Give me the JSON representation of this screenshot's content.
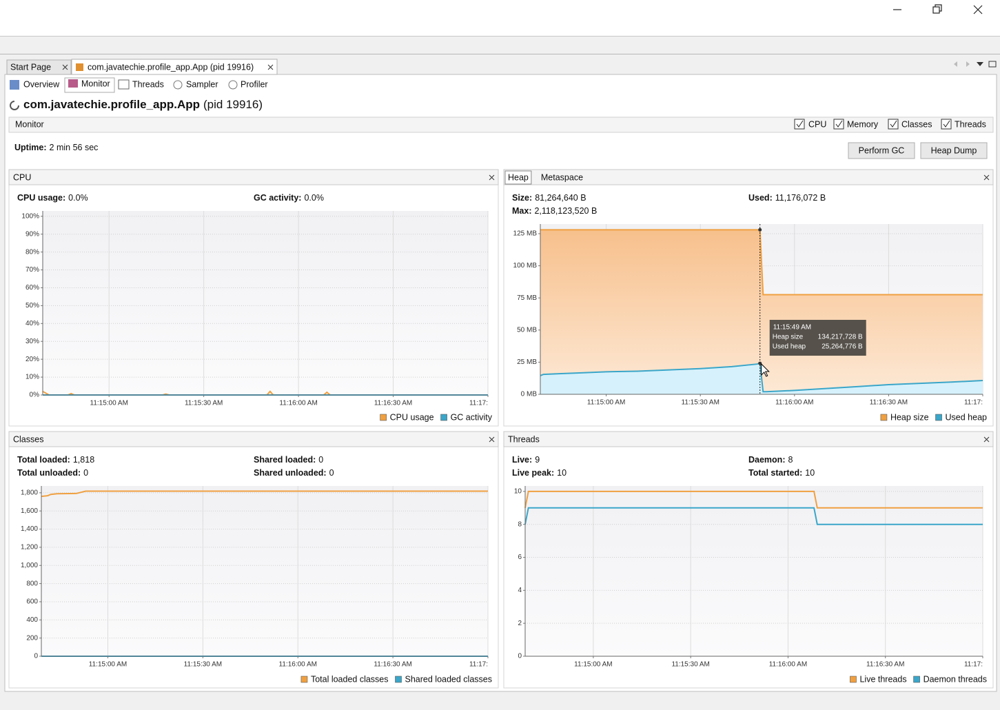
{
  "tabs": [
    "Start Page",
    "com.javatechie.profile_app.App (pid 19916)"
  ],
  "subtabs": [
    "Overview",
    "Monitor",
    "Threads",
    "Sampler",
    "Profiler"
  ],
  "app_title": {
    "name": "com.javatechie.profile_app.App",
    "pid": "(pid 19916)"
  },
  "monitor": {
    "title": "Monitor",
    "checkboxes": [
      "CPU",
      "Memory",
      "Classes",
      "Threads"
    ],
    "uptime_label": "Uptime:",
    "uptime": "2 min 56 sec",
    "buttons": [
      "Perform GC",
      "Heap Dump"
    ]
  },
  "panels": [
    {
      "tabs": [
        "CPU"
      ],
      "stats": [
        {
          "label": "CPU usage:",
          "value": "0.0%"
        },
        {
          "label": "GC activity:",
          "value": "0.0%"
        }
      ],
      "chart": {
        "type": "line",
        "x": [
          40479,
          40480,
          40481,
          40487,
          40488,
          40489,
          40517,
          40518,
          40519,
          40550,
          40551,
          40552,
          40568,
          40569,
          40570,
          40620
        ],
        "series": [
          {
            "name": "CPU usage",
            "color": "#f0a040",
            "values": [
              2,
              1,
              0,
              0,
              0.8,
              0,
              0,
              0.5,
              0,
              0,
              2,
              0,
              0,
              1.5,
              0,
              0
            ]
          },
          {
            "name": "GC activity",
            "color": "#3aa6c9",
            "values": [
              0,
              0,
              0,
              0,
              0,
              0,
              0,
              0,
              0,
              0,
              0,
              0,
              0,
              0,
              0,
              0
            ]
          }
        ],
        "xlim": [
          40479,
          40620
        ],
        "xticks": [
          {
            "value": 40500,
            "label": "11:15:00 AM"
          },
          {
            "value": 40530,
            "label": "11:15:30 AM"
          },
          {
            "value": 40560,
            "label": "11:16:00 AM"
          },
          {
            "value": 40590,
            "label": "11:16:30 AM"
          },
          {
            "value": 40620,
            "label": "11:17:"
          }
        ],
        "ylim": [
          0,
          103
        ],
        "yticks": [
          {
            "value": 0,
            "label": "0%"
          },
          {
            "value": 10,
            "label": "10%"
          },
          {
            "value": 20,
            "label": "20%"
          },
          {
            "value": 30,
            "label": "30%"
          },
          {
            "value": 40,
            "label": "40%"
          },
          {
            "value": 50,
            "label": "50%"
          },
          {
            "value": 60,
            "label": "60%"
          },
          {
            "value": 70,
            "label": "70%"
          },
          {
            "value": 80,
            "label": "80%"
          },
          {
            "value": 90,
            "label": "90%"
          },
          {
            "value": 100,
            "label": "100%"
          }
        ],
        "grid": true
      }
    },
    {
      "tabs": [
        "Heap",
        "Metaspace"
      ],
      "stats": [
        {
          "label": "Size:",
          "value": "81,264,640 B"
        },
        {
          "label": "Used:",
          "value": "11,176,072 B"
        },
        {
          "label": "Max:",
          "value": "2,118,123,520 B"
        }
      ],
      "chart": {
        "type": "area",
        "x": [
          40479,
          40480,
          40485,
          40490,
          40500,
          40510,
          40520,
          40530,
          40540,
          40548,
          40549,
          40550,
          40551,
          40560,
          40570,
          40580,
          40590,
          40600,
          40610,
          40620
        ],
        "series": [
          {
            "name": "Heap size",
            "color": "#f0a040",
            "values": [
              128,
              128,
              128,
              128,
              128,
              128,
              128,
              128,
              128,
              128,
              128,
              77.5,
              77.5,
              77.5,
              77.5,
              77.5,
              77.5,
              77.5,
              77.5,
              77.5
            ]
          },
          {
            "name": "Used heap",
            "color": "#3aa6c9",
            "values": [
              14.5,
              15.5,
              16,
              16.5,
              17.5,
              18,
              19,
              20,
              21.5,
              23.5,
              24.1,
              2,
              2,
              3,
              4.5,
              6,
              7.5,
              8.5,
              9.5,
              10.7
            ]
          }
        ],
        "xlim": [
          40479,
          40620
        ],
        "xticks": [
          {
            "value": 40500,
            "label": "11:15:00 AM"
          },
          {
            "value": 40530,
            "label": "11:15:30 AM"
          },
          {
            "value": 40560,
            "label": "11:16:00 AM"
          },
          {
            "value": 40590,
            "label": "11:16:30 AM"
          },
          {
            "value": 40620,
            "label": "11:17:"
          }
        ],
        "ylim": [
          0,
          132.5
        ],
        "yticks": [
          {
            "value": 0,
            "label": "0 MB"
          },
          {
            "value": 25,
            "label": "25 MB"
          },
          {
            "value": 50,
            "label": "50 MB"
          },
          {
            "value": 75,
            "label": "75 MB"
          },
          {
            "value": 100,
            "label": "100 MB"
          },
          {
            "value": 125,
            "label": "125 MB"
          }
        ],
        "grid": true,
        "tooltip": {
          "x": 40549,
          "time": "11:15:49 AM",
          "rows": [
            {
              "label": "Heap size",
              "value": "134,217,728 B"
            },
            {
              "label": "Used heap",
              "value": "25,264,776 B"
            }
          ]
        }
      }
    },
    {
      "tabs": [
        "Classes"
      ],
      "stats": [
        {
          "label": "Total loaded:",
          "value": "1,818"
        },
        {
          "label": "Shared loaded:",
          "value": "0"
        },
        {
          "label": "Total unloaded:",
          "value": "0"
        },
        {
          "label": "Shared unloaded:",
          "value": "0"
        }
      ],
      "chart": {
        "type": "line",
        "x": [
          40479,
          40481,
          40482,
          40484,
          40490,
          40493,
          40620
        ],
        "series": [
          {
            "name": "Total loaded classes",
            "color": "#f0a040",
            "values": [
              1760,
              1768,
              1782,
              1790,
              1792,
              1818,
              1818
            ]
          },
          {
            "name": "Shared loaded classes",
            "color": "#3aa6c9",
            "values": [
              0,
              0,
              0,
              0,
              0,
              0,
              0
            ]
          }
        ],
        "xlim": [
          40479,
          40620
        ],
        "xticks": [
          {
            "value": 40500,
            "label": "11:15:00 AM"
          },
          {
            "value": 40530,
            "label": "11:15:30 AM"
          },
          {
            "value": 40560,
            "label": "11:16:00 AM"
          },
          {
            "value": 40590,
            "label": "11:16:30 AM"
          },
          {
            "value": 40620,
            "label": "11:17:"
          }
        ],
        "ylim": [
          0,
          1875
        ],
        "yticks": [
          0,
          200,
          400,
          600,
          800,
          {
            "value": 1000,
            "label": "1,000"
          },
          {
            "value": 1200,
            "label": "1,200"
          },
          {
            "value": 1400,
            "label": "1,400"
          },
          {
            "value": 1600,
            "label": "1,600"
          },
          {
            "value": 1800,
            "label": "1,800"
          }
        ],
        "grid": true
      }
    },
    {
      "tabs": [
        "Threads"
      ],
      "stats": [
        {
          "label": "Live:",
          "value": "9"
        },
        {
          "label": "Daemon:",
          "value": "8"
        },
        {
          "label": "Live peak:",
          "value": "10"
        },
        {
          "label": "Total started:",
          "value": "10"
        }
      ],
      "chart": {
        "type": "line",
        "x": [
          40479,
          40480,
          40568,
          40569,
          40620
        ],
        "series": [
          {
            "name": "Live threads",
            "color": "#f0a040",
            "values": [
              9,
              10,
              10,
              9,
              9
            ]
          },
          {
            "name": "Daemon threads",
            "color": "#3aa6c9",
            "values": [
              8,
              9,
              9,
              8,
              8
            ]
          }
        ],
        "xlim": [
          40479,
          40620
        ],
        "xticks": [
          {
            "value": 40500,
            "label": "11:15:00 AM"
          },
          {
            "value": 40530,
            "label": "11:15:30 AM"
          },
          {
            "value": 40560,
            "label": "11:16:00 AM"
          },
          {
            "value": 40590,
            "label": "11:16:30 AM"
          },
          {
            "value": 40620,
            "label": "11:17:"
          }
        ],
        "ylim": [
          0,
          10.33
        ],
        "yticks": [
          0,
          2,
          4,
          6,
          8,
          10
        ],
        "grid": true
      }
    }
  ]
}
